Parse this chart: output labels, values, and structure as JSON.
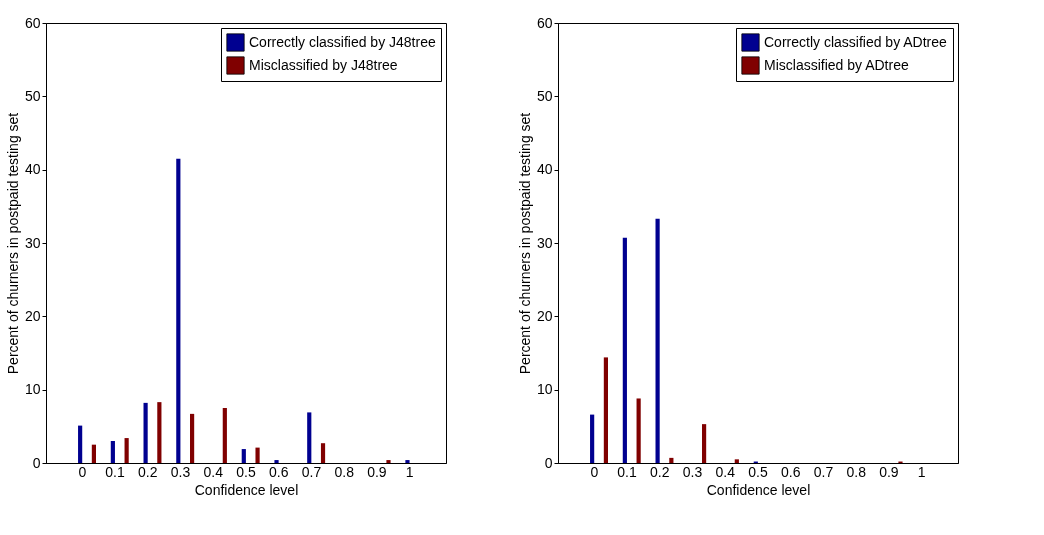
{
  "chart_data": [
    {
      "type": "bar",
      "categories": [
        "0",
        "0.1",
        "0.2",
        "0.3",
        "0.4",
        "0.5",
        "0.6",
        "0.7",
        "0.8",
        "0.9",
        "1"
      ],
      "xlabel": "Confidence level",
      "ylabel": "Percent of churners in postpaid testing set",
      "ylim": [
        0,
        60
      ],
      "yticks": [
        0,
        10,
        20,
        30,
        40,
        50,
        60
      ],
      "legend": "top right",
      "grid": false,
      "series": [
        {
          "name": "Correctly classified by J48tree",
          "color": "#000090",
          "values": [
            5.1,
            3.0,
            8.2,
            41.5,
            0,
            1.9,
            0.4,
            6.9,
            0,
            0,
            0.4
          ]
        },
        {
          "name": "Misclassified by J48tree",
          "color": "#800000",
          "values": [
            2.5,
            3.4,
            8.3,
            6.7,
            7.5,
            2.1,
            0,
            2.7,
            0,
            0.4,
            0
          ]
        }
      ]
    },
    {
      "type": "bar",
      "categories": [
        "0",
        "0.1",
        "0.2",
        "0.3",
        "0.4",
        "0.5",
        "0.6",
        "0.7",
        "0.8",
        "0.9",
        "1"
      ],
      "xlabel": "Confidence level",
      "ylabel": "Percent of churners in postpaid testing set",
      "ylim": [
        0,
        60
      ],
      "yticks": [
        0,
        10,
        20,
        30,
        40,
        50,
        60
      ],
      "legend": "top right",
      "grid": false,
      "series": [
        {
          "name": "Correctly classified by ADtree",
          "color": "#000090",
          "values": [
            6.6,
            30.7,
            33.3,
            0,
            0,
            0.2,
            0,
            0,
            0,
            0,
            0
          ]
        },
        {
          "name": "Misclassified by ADtree",
          "color": "#800000",
          "values": [
            14.4,
            8.8,
            0.7,
            5.3,
            0.5,
            0,
            0,
            0,
            0,
            0.2,
            0
          ]
        }
      ]
    }
  ]
}
